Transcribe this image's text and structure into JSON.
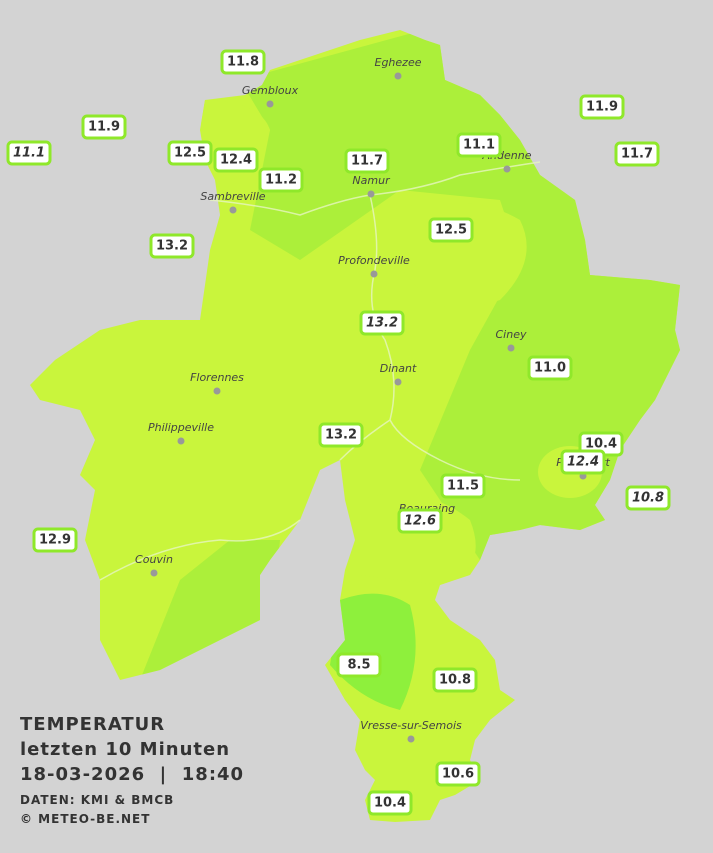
{
  "title": {
    "lines": [
      "TEMPERATUR",
      "letzten 10 Minuten",
      "18-03-2026  |  18:40",
      "DATEN: KMI & BMCB",
      "© METEO-BE.NET"
    ]
  },
  "cities": [
    "Eghezee",
    "Gembloux",
    "Andenne",
    "Namur",
    "Sambreville",
    "Profondeville",
    "Ciney",
    "Dinant",
    "Florennes",
    "Philippeville",
    "Rochefort",
    "Beauraing",
    "Couvin",
    "Vresse-sur-Semois"
  ],
  "stations": [
    {
      "label": "11.8",
      "italic": false
    },
    {
      "label": "11.9",
      "italic": false
    },
    {
      "label": "11.1",
      "italic": true
    },
    {
      "label": "12.5",
      "italic": false
    },
    {
      "label": "12.4",
      "italic": false
    },
    {
      "label": "11.2",
      "italic": false
    },
    {
      "label": "11.7",
      "italic": false
    },
    {
      "label": "11.1",
      "italic": false
    },
    {
      "label": "11.9",
      "italic": false
    },
    {
      "label": "11.7",
      "italic": false
    },
    {
      "label": "12.5",
      "italic": false
    },
    {
      "label": "13.2",
      "italic": false
    },
    {
      "label": "13.2",
      "italic": true
    },
    {
      "label": "11.0",
      "italic": false
    },
    {
      "label": "13.2",
      "italic": false
    },
    {
      "label": "10.4",
      "italic": false
    },
    {
      "label": "12.4",
      "italic": true
    },
    {
      "label": "11.5",
      "italic": false
    },
    {
      "label": "10.8",
      "italic": true
    },
    {
      "label": "12.6",
      "italic": true
    },
    {
      "label": "12.9",
      "italic": false
    },
    {
      "label": "8.5",
      "italic": false
    },
    {
      "label": "10.8",
      "italic": false
    },
    {
      "label": "10.6",
      "italic": false
    },
    {
      "label": "10.4",
      "italic": false
    }
  ]
}
